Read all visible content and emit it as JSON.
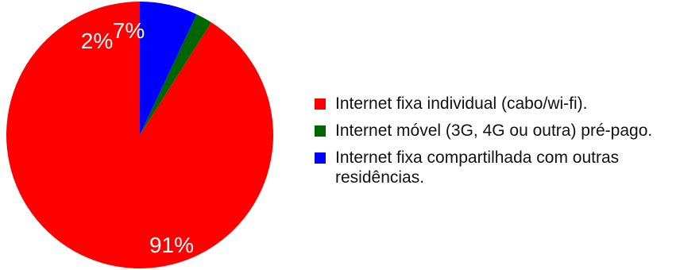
{
  "chart_data": {
    "type": "pie",
    "slices": [
      {
        "label": "Internet fixa individual (cabo/wi-fi).",
        "value": 91,
        "display": "91%",
        "color": "#ff0000"
      },
      {
        "label": "Internet móvel (3G, 4G ou outra) pré-pago.",
        "value": 2,
        "display": "2%",
        "color": "#006600"
      },
      {
        "label": "Internet fixa compartilhada com outras residências.",
        "value": 7,
        "display": "7%",
        "color": "#0000ff"
      }
    ],
    "legend_position": "right",
    "label_color": "#ffffff"
  },
  "legend": {
    "items": [
      {
        "label": "Internet fixa individual (cabo/wi-fi).",
        "color": "#ff0000"
      },
      {
        "label": "Internet móvel (3G, 4G ou outra) pré-pago.",
        "color": "#006600"
      },
      {
        "label": "Internet fixa compartilhada com outras residências.",
        "color": "#0000ff"
      }
    ]
  }
}
